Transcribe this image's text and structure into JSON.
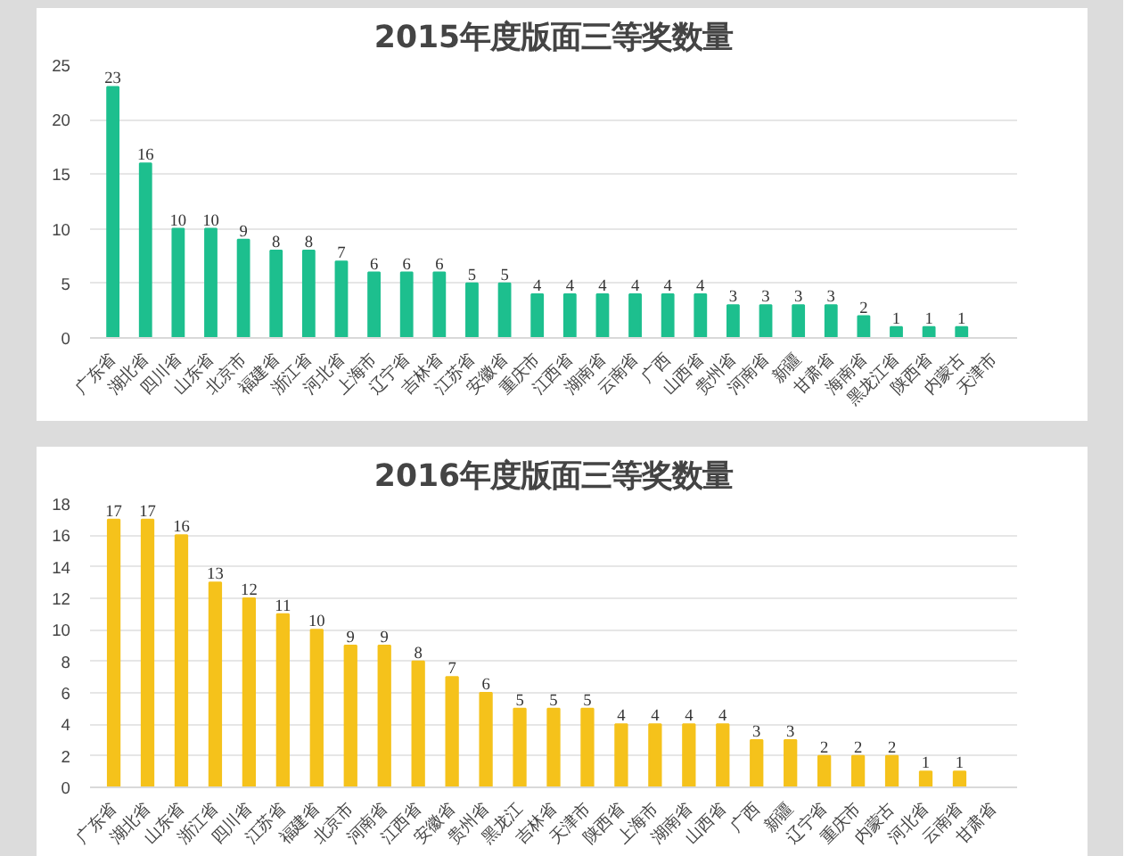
{
  "chart_data": [
    {
      "type": "bar",
      "title": "2015年度版面三等奖数量",
      "categories": [
        "广东省",
        "湖北省",
        "四川省",
        "山东省",
        "北京市",
        "福建省",
        "浙江省",
        "河北省",
        "上海市",
        "辽宁省",
        "吉林省",
        "江苏省",
        "安徽省",
        "重庆市",
        "江西省",
        "湖南省",
        "云南省",
        "广西",
        "山西省",
        "贵州省",
        "河南省",
        "新疆",
        "甘肃省",
        "海南省",
        "黑龙江省",
        "陕西省",
        "内蒙古",
        "天津市"
      ],
      "values": [
        23,
        16,
        10,
        10,
        9,
        8,
        8,
        7,
        6,
        6,
        6,
        5,
        5,
        4,
        4,
        4,
        4,
        4,
        4,
        3,
        3,
        3,
        3,
        2,
        1,
        1,
        1,
        0
      ],
      "value_labels": [
        "23",
        "16",
        "10",
        "10",
        "9",
        "8",
        "8",
        "7",
        "6",
        "6",
        "6",
        "5",
        "5",
        "4",
        "4",
        "4",
        "4",
        "4",
        "4",
        "3",
        "3",
        "3",
        "3",
        "2",
        "1",
        "1",
        "1",
        null
      ],
      "color": "#1dbf8e",
      "ylim": [
        0,
        25
      ],
      "yticks": [
        0,
        5,
        10,
        15,
        20,
        25
      ],
      "grid": "y"
    },
    {
      "type": "bar",
      "title": "2016年度版面三等奖数量",
      "categories": [
        "广东省",
        "湖北省",
        "山东省",
        "浙江省",
        "四川省",
        "江苏省",
        "福建省",
        "北京市",
        "河南省",
        "江西省",
        "安徽省",
        "贵州省",
        "黑龙江",
        "吉林省",
        "天津市",
        "陕西省",
        "上海市",
        "湖南省",
        "山西省",
        "广西",
        "新疆",
        "辽宁省",
        "重庆市",
        "内蒙古",
        "河北省",
        "云南省",
        "甘肃省"
      ],
      "values": [
        17,
        17,
        16,
        13,
        12,
        11,
        10,
        9,
        9,
        8,
        7,
        6,
        5,
        5,
        5,
        4,
        4,
        4,
        4,
        3,
        3,
        2,
        2,
        2,
        1,
        1,
        0
      ],
      "value_labels": [
        "17",
        "17",
        "16",
        "13",
        "12",
        "11",
        "10",
        "9",
        "9",
        "8",
        "7",
        "6",
        "5",
        "5",
        "5",
        "4",
        "4",
        "4",
        "4",
        "3",
        "3",
        "2",
        "2",
        "2",
        "1",
        "1",
        null
      ],
      "color": "#f5c21b",
      "ylim": [
        0,
        18
      ],
      "yticks": [
        0,
        2,
        4,
        6,
        8,
        10,
        12,
        14,
        16,
        18
      ],
      "grid": "y"
    }
  ]
}
